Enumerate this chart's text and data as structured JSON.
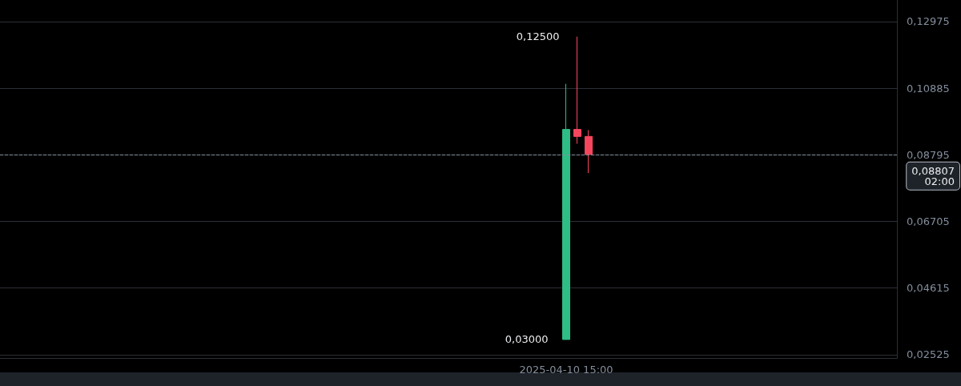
{
  "chart_data": {
    "type": "candlestick",
    "categories": [
      null,
      null,
      null,
      null,
      null,
      null,
      null,
      null,
      null,
      null,
      null,
      null,
      null,
      null,
      null,
      null,
      null,
      null,
      null,
      null,
      null,
      null,
      null,
      null,
      null,
      null,
      null,
      null,
      null,
      null,
      null,
      null,
      null,
      null,
      null,
      null,
      null,
      null,
      null,
      null,
      null,
      null,
      null,
      null,
      null,
      null,
      null,
      null,
      null,
      null,
      "2025-04-10 15:00",
      null,
      null,
      null,
      null,
      null,
      null,
      null,
      null,
      null,
      null,
      null,
      null,
      null,
      null,
      null,
      null,
      null,
      null,
      null,
      null,
      null,
      null,
      null,
      null,
      null,
      null,
      null,
      null,
      null
    ],
    "ohlc": [
      null,
      null,
      null,
      null,
      null,
      null,
      null,
      null,
      null,
      null,
      null,
      null,
      null,
      null,
      null,
      null,
      null,
      null,
      null,
      null,
      null,
      null,
      null,
      null,
      null,
      null,
      null,
      null,
      null,
      null,
      null,
      null,
      null,
      null,
      null,
      null,
      null,
      null,
      null,
      null,
      null,
      null,
      null,
      null,
      null,
      null,
      null,
      null,
      null,
      null,
      [
        0.03,
        0.1102,
        0.03,
        0.0959
      ],
      [
        0.0959,
        0.125,
        0.0914,
        0.0937
      ],
      [
        0.0937,
        0.0957,
        0.0822,
        0.08807
      ],
      null,
      null,
      null,
      null,
      null,
      null,
      null,
      null,
      null,
      null,
      null,
      null,
      null,
      null,
      null,
      null,
      null,
      null,
      null,
      null,
      null,
      null,
      null,
      null,
      null,
      null,
      null
    ],
    "colors": [
      null,
      null,
      null,
      null,
      null,
      null,
      null,
      null,
      null,
      null,
      null,
      null,
      null,
      null,
      null,
      null,
      null,
      null,
      null,
      null,
      null,
      null,
      null,
      null,
      null,
      null,
      null,
      null,
      null,
      null,
      null,
      null,
      null,
      null,
      null,
      null,
      null,
      null,
      null,
      null,
      null,
      null,
      null,
      null,
      null,
      null,
      null,
      null,
      null,
      null,
      "#2ebd85",
      "#f6465d",
      "#f6465d",
      null,
      null,
      null,
      null,
      null,
      null,
      null,
      null,
      null,
      null,
      null,
      null,
      null,
      null,
      null,
      null,
      null,
      null,
      null,
      null,
      null,
      null,
      null,
      null,
      null,
      null,
      null
    ],
    "ylim": [
      0.0242,
      0.1365
    ],
    "yticks": [
      {
        "value": 0.02525,
        "label": "0,02525"
      },
      {
        "value": 0.04615,
        "label": "0,04615"
      },
      {
        "value": 0.06705,
        "label": "0,06705"
      },
      {
        "value": 0.08795,
        "label": "0,08795"
      },
      {
        "value": 0.10885,
        "label": "0,10885"
      },
      {
        "value": 0.12975,
        "label": "0,12975"
      }
    ],
    "grid": "y",
    "ref_lines": [
      {
        "axis": "y",
        "value": 0.08807,
        "label": "0,08807\n02:00",
        "color": "#848e9c",
        "line_style": "dashed"
      }
    ],
    "annotations": [
      "0,12500",
      {
        "text": "0,03000",
        "x": "2025-04-10 15:00",
        "y": 0.03
      }
    ]
  }
}
